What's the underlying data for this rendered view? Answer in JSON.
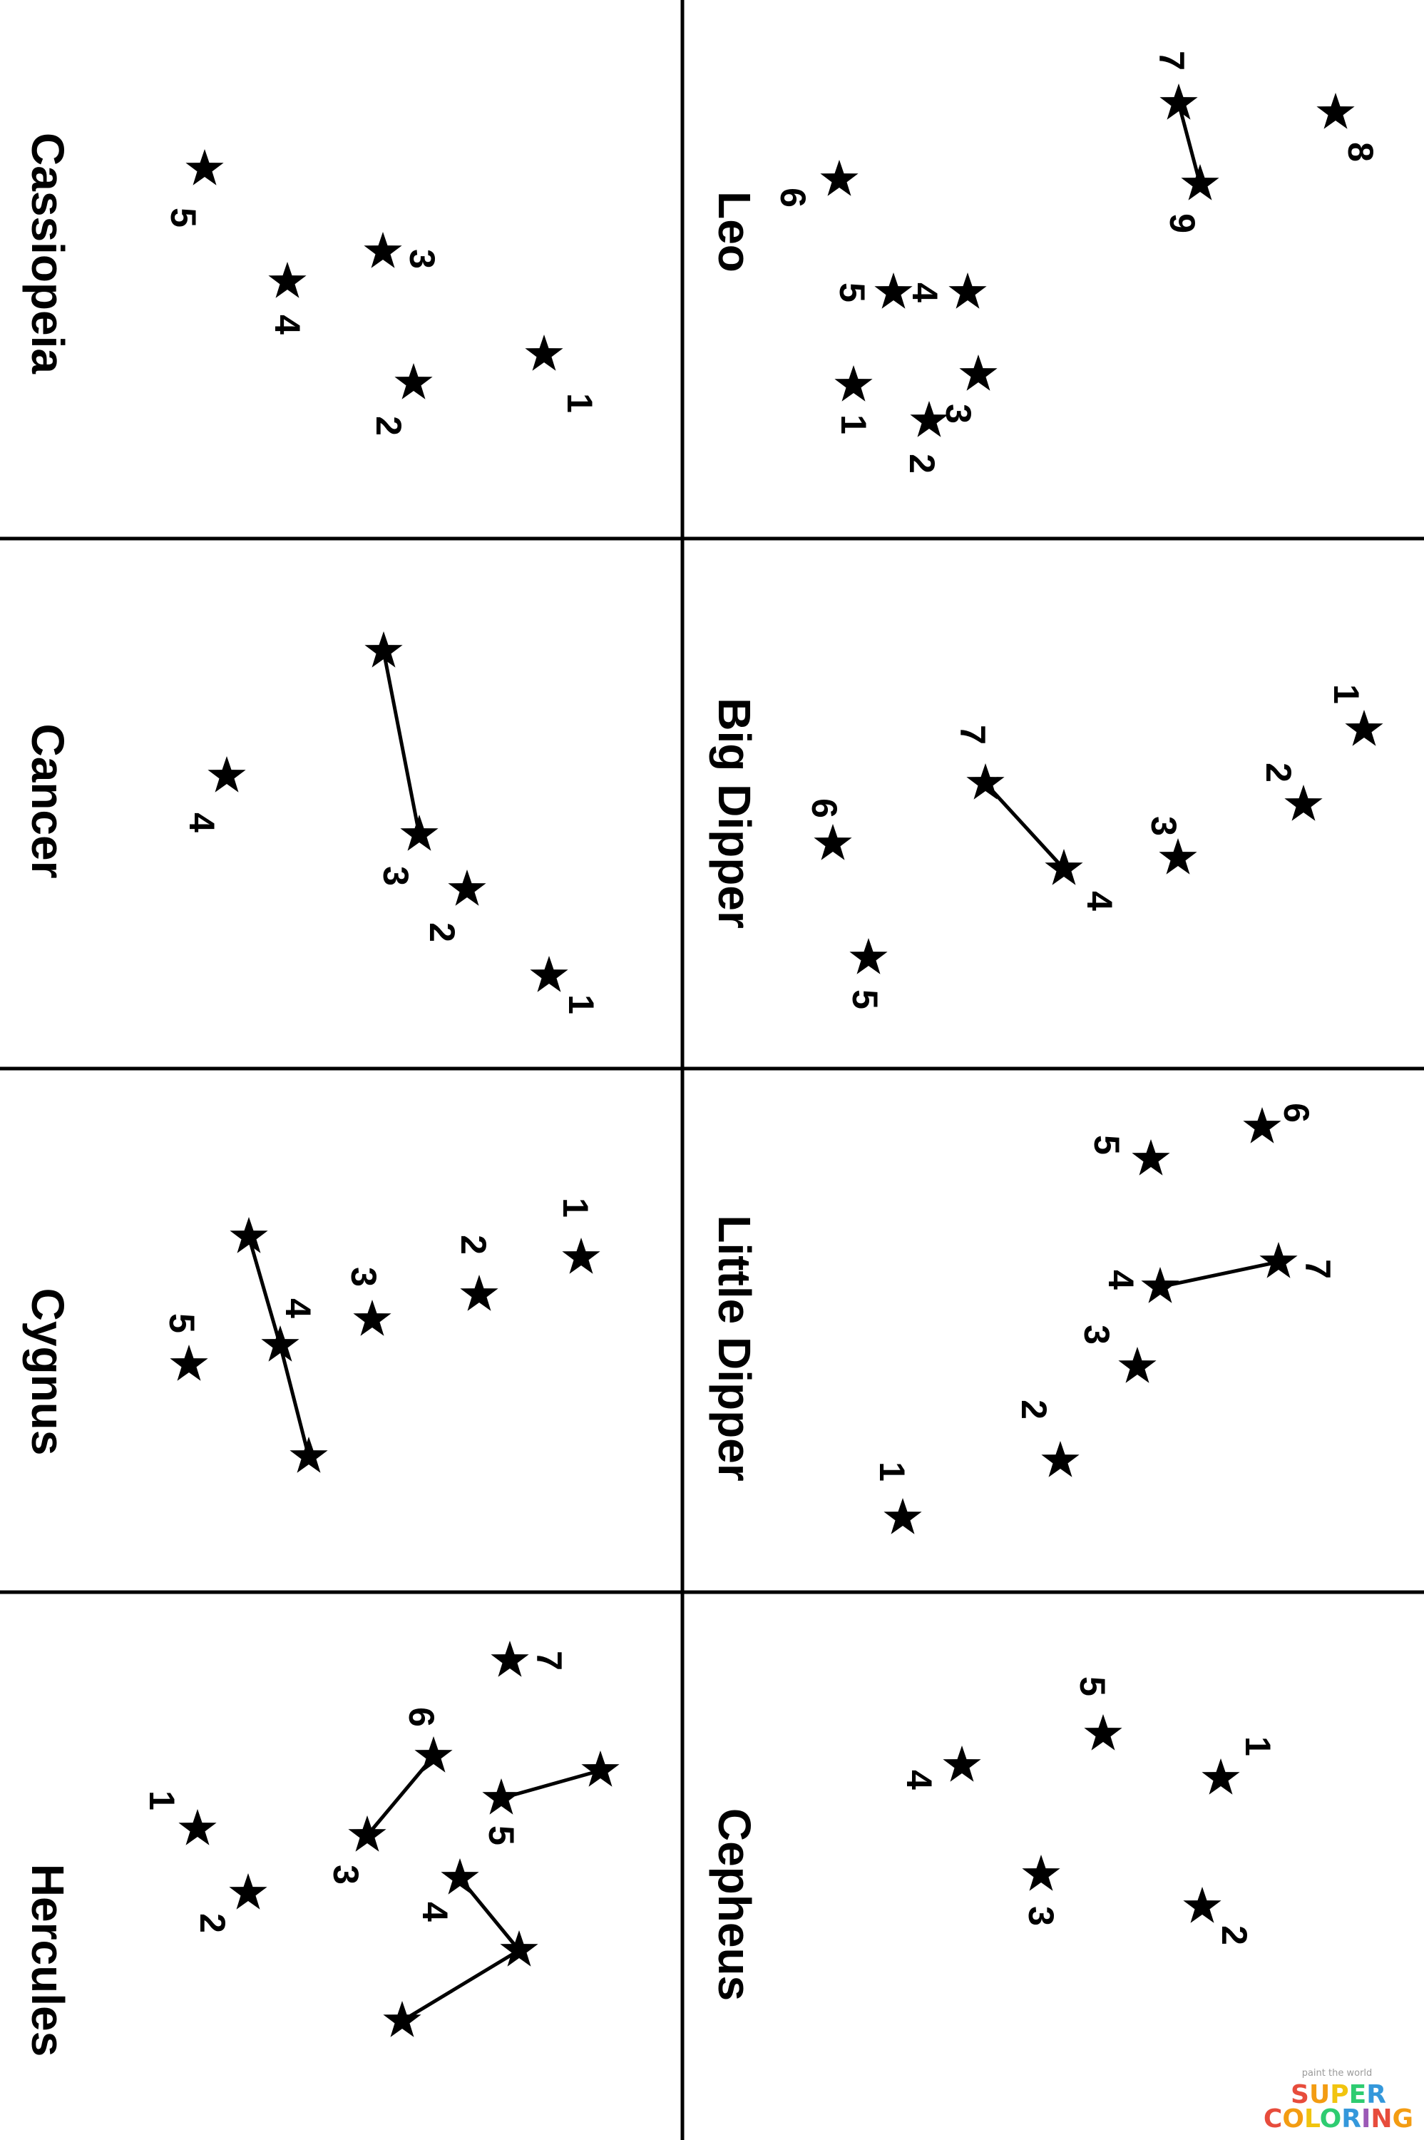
{
  "constellations": [
    {
      "name": "Leo",
      "stars": [
        {
          "label": "1"
        },
        {
          "label": "2"
        },
        {
          "label": "3"
        },
        {
          "label": "4"
        },
        {
          "label": "5"
        },
        {
          "label": "6"
        },
        {
          "label": "7"
        },
        {
          "label": "8"
        },
        {
          "label": "9"
        }
      ],
      "links": [
        [
          6,
          8
        ]
      ]
    },
    {
      "name": "Cassiopeia",
      "stars": [
        {
          "label": "1"
        },
        {
          "label": "2"
        },
        {
          "label": "3"
        },
        {
          "label": "4"
        },
        {
          "label": "5"
        }
      ],
      "links": []
    },
    {
      "name": "Big Dipper",
      "stars": [
        {
          "label": "1"
        },
        {
          "label": "2"
        },
        {
          "label": "3"
        },
        {
          "label": "4"
        },
        {
          "label": "5"
        },
        {
          "label": "6"
        },
        {
          "label": "7"
        }
      ],
      "links": [
        [
          6,
          3
        ]
      ]
    },
    {
      "name": "Cancer",
      "stars": [
        {
          "label": "1"
        },
        {
          "label": "2"
        },
        {
          "label": "3"
        },
        {
          "label": "4"
        },
        {
          "label": ""
        }
      ],
      "links": [
        [
          4,
          2
        ]
      ]
    },
    {
      "name": "Little Dipper",
      "stars": [
        {
          "label": "1"
        },
        {
          "label": "2"
        },
        {
          "label": "3"
        },
        {
          "label": "4"
        },
        {
          "label": "5"
        },
        {
          "label": "6"
        },
        {
          "label": "7"
        }
      ],
      "links": [
        [
          3,
          6
        ]
      ]
    },
    {
      "name": "Cygnus",
      "stars": [
        {
          "label": "1"
        },
        {
          "label": "2"
        },
        {
          "label": "3"
        },
        {
          "label": "4"
        },
        {
          "label": "5"
        },
        {
          "label": ""
        },
        {
          "label": ""
        }
      ],
      "links": [
        [
          5,
          3
        ],
        [
          3,
          6
        ]
      ]
    },
    {
      "name": "Cepheus",
      "stars": [
        {
          "label": "1"
        },
        {
          "label": "2"
        },
        {
          "label": "3"
        },
        {
          "label": "4"
        },
        {
          "label": "5"
        }
      ],
      "links": []
    },
    {
      "name": "Hercules",
      "stars": [
        {
          "label": "1"
        },
        {
          "label": "2"
        },
        {
          "label": "3"
        },
        {
          "label": "4"
        },
        {
          "label": "5"
        },
        {
          "label": "6"
        },
        {
          "label": "7"
        },
        {
          "label": ""
        },
        {
          "label": ""
        },
        {
          "label": ""
        }
      ],
      "links": [
        [
          5,
          2
        ],
        [
          4,
          7
        ],
        [
          3,
          8
        ],
        [
          8,
          9
        ]
      ]
    }
  ],
  "watermark": {
    "tagline": "paint the world",
    "line1": "SUPER",
    "line2": "COLORING",
    "colors": [
      "#e74c3c",
      "#f39c12",
      "#f1c40f",
      "#2ecc71",
      "#3498db",
      "#9b59b6"
    ]
  }
}
